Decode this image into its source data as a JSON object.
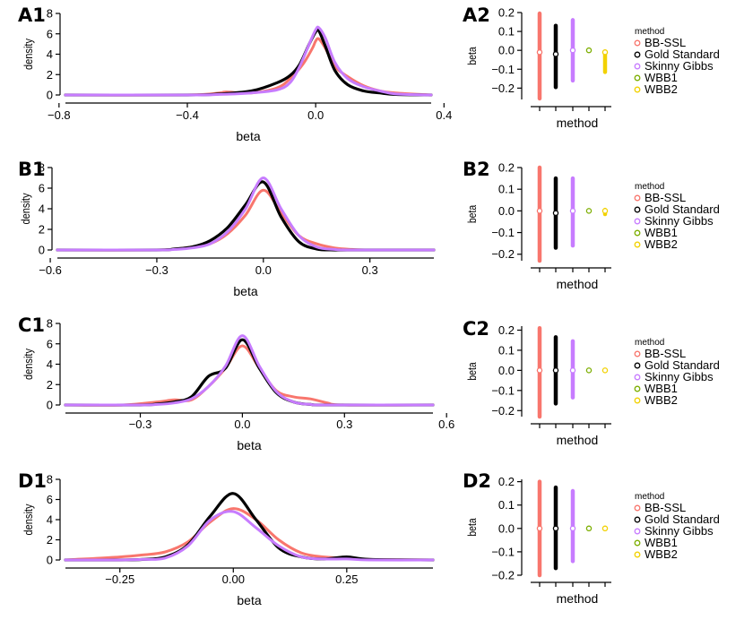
{
  "colors": {
    "BB-SSL": "#F8766D",
    "Gold Standard": "#000000",
    "Skinny Gibbs": "#C77CFF",
    "WBB1": "#7CAE00",
    "WBB2": "#F2D100"
  },
  "chart_data": [
    {
      "panel": "A1",
      "type": "line",
      "xlabel": "beta",
      "ylabel": "density",
      "xlim": [
        -0.78,
        0.36
      ],
      "ylim": [
        0,
        8
      ],
      "xticks": [
        -0.8,
        -0.4,
        0.0,
        0.4
      ],
      "xtick_labels": [
        "−0.8",
        "−0.4",
        "0.0",
        "0.4"
      ],
      "yticks": [
        0,
        2,
        4,
        6,
        8
      ],
      "ytick_labels": [
        "0",
        "2",
        "4",
        "6",
        "8"
      ],
      "series": [
        {
          "name": "BB-SSL",
          "x": [
            -0.78,
            -0.4,
            -0.3,
            -0.28,
            -0.2,
            -0.12,
            -0.08,
            -0.04,
            -0.01,
            0.0,
            0.01,
            0.03,
            0.06,
            0.1,
            0.15,
            0.2,
            0.25,
            0.36
          ],
          "y": [
            0,
            0,
            0.2,
            0.3,
            0.2,
            0.7,
            1.6,
            3.0,
            4.6,
            5.3,
            5.5,
            4.6,
            2.8,
            1.8,
            0.9,
            0.4,
            0.2,
            0
          ]
        },
        {
          "name": "Gold Standard",
          "x": [
            -0.78,
            -0.4,
            -0.3,
            -0.2,
            -0.12,
            -0.08,
            -0.05,
            -0.02,
            0.0,
            0.01,
            0.03,
            0.06,
            0.1,
            0.15,
            0.2,
            0.25,
            0.36
          ],
          "y": [
            0,
            0,
            0.1,
            0.4,
            1.2,
            1.9,
            3.0,
            5.0,
            6.2,
            6.3,
            4.8,
            2.4,
            1.0,
            0.4,
            0.2,
            0.05,
            0
          ]
        },
        {
          "name": "Skinny Gibbs",
          "x": [
            -0.78,
            -0.4,
            -0.3,
            -0.2,
            -0.12,
            -0.08,
            -0.05,
            -0.02,
            0.0,
            0.01,
            0.03,
            0.06,
            0.1,
            0.15,
            0.2,
            0.25,
            0.36
          ],
          "y": [
            0,
            0,
            0.05,
            0.2,
            0.5,
            1.2,
            2.8,
            5.0,
            6.4,
            6.6,
            5.6,
            3.2,
            1.6,
            0.8,
            0.4,
            0.1,
            0
          ]
        }
      ]
    },
    {
      "panel": "B1",
      "type": "line",
      "xlabel": "beta",
      "ylabel": "density",
      "xlim": [
        -0.58,
        0.48
      ],
      "ylim": [
        0,
        8
      ],
      "xticks": [
        -0.6,
        -0.3,
        0.0,
        0.3
      ],
      "xtick_labels": [
        "−0.6",
        "−0.3",
        "0.0",
        "0.3"
      ],
      "yticks": [
        0,
        2,
        4,
        6,
        8
      ],
      "ytick_labels": [
        "0",
        "2",
        "4",
        "6",
        "8"
      ],
      "series": [
        {
          "name": "BB-SSL",
          "x": [
            -0.58,
            -0.3,
            -0.25,
            -0.2,
            -0.15,
            -0.1,
            -0.05,
            0.0,
            0.05,
            0.1,
            0.15,
            0.2,
            0.25,
            0.3,
            0.48
          ],
          "y": [
            0,
            0,
            0.1,
            0.3,
            0.6,
            1.6,
            3.4,
            5.8,
            3.6,
            1.4,
            0.6,
            0.2,
            0.05,
            0,
            0
          ]
        },
        {
          "name": "Gold Standard",
          "x": [
            -0.58,
            -0.3,
            -0.25,
            -0.2,
            -0.15,
            -0.1,
            -0.05,
            0.0,
            0.05,
            0.1,
            0.15,
            0.2,
            0.25,
            0.48
          ],
          "y": [
            0,
            0,
            0.1,
            0.3,
            0.9,
            2.2,
            4.4,
            6.6,
            3.2,
            0.8,
            0.1,
            0,
            0,
            0
          ]
        },
        {
          "name": "Skinny Gibbs",
          "x": [
            -0.58,
            -0.3,
            -0.25,
            -0.2,
            -0.15,
            -0.1,
            -0.05,
            0.0,
            0.05,
            0.1,
            0.15,
            0.2,
            0.25,
            0.48
          ],
          "y": [
            0,
            0,
            0.05,
            0.2,
            0.6,
            1.8,
            4.0,
            7.0,
            4.0,
            1.4,
            0.3,
            0.05,
            0,
            0
          ]
        }
      ]
    },
    {
      "panel": "C1",
      "type": "line",
      "xlabel": "beta",
      "ylabel": "density",
      "xlim": [
        -0.52,
        0.56
      ],
      "ylim": [
        0,
        8
      ],
      "xticks": [
        -0.3,
        0.0,
        0.3,
        0.6
      ],
      "xtick_labels": [
        "−0.3",
        "0.0",
        "0.3",
        "0.6"
      ],
      "yticks": [
        0,
        2,
        4,
        6,
        8
      ],
      "ytick_labels": [
        "0",
        "2",
        "4",
        "6",
        "8"
      ],
      "series": [
        {
          "name": "BB-SSL",
          "x": [
            -0.52,
            -0.35,
            -0.25,
            -0.2,
            -0.15,
            -0.1,
            -0.05,
            0.0,
            0.05,
            0.1,
            0.15,
            0.2,
            0.25,
            0.3,
            0.56
          ],
          "y": [
            0,
            0,
            0.3,
            0.5,
            0.5,
            1.8,
            3.6,
            5.8,
            3.6,
            1.4,
            0.8,
            0.6,
            0.2,
            0,
            0
          ]
        },
        {
          "name": "Gold Standard",
          "x": [
            -0.52,
            -0.3,
            -0.25,
            -0.2,
            -0.15,
            -0.1,
            -0.05,
            0.0,
            0.05,
            0.1,
            0.15,
            0.2,
            0.25,
            0.56
          ],
          "y": [
            0,
            0,
            0.1,
            0.3,
            0.8,
            2.8,
            3.6,
            6.4,
            3.6,
            1.2,
            0.3,
            0.05,
            0,
            0
          ]
        },
        {
          "name": "Skinny Gibbs",
          "x": [
            -0.52,
            -0.3,
            -0.25,
            -0.2,
            -0.15,
            -0.1,
            -0.05,
            0.0,
            0.05,
            0.1,
            0.15,
            0.2,
            0.25,
            0.56
          ],
          "y": [
            0,
            0,
            0.05,
            0.2,
            0.6,
            1.8,
            3.8,
            6.8,
            3.8,
            1.3,
            0.3,
            0.05,
            0,
            0
          ]
        }
      ]
    },
    {
      "panel": "D1",
      "type": "line",
      "xlabel": "beta",
      "ylabel": "density",
      "xlim": [
        -0.37,
        0.44
      ],
      "ylim": [
        0,
        8
      ],
      "xticks": [
        -0.25,
        0.0,
        0.25
      ],
      "xtick_labels": [
        "−0.25",
        "0.00",
        "0.25"
      ],
      "yticks": [
        0,
        2,
        4,
        6,
        8
      ],
      "ytick_labels": [
        "0",
        "2",
        "4",
        "6",
        "8"
      ],
      "series": [
        {
          "name": "BB-SSL",
          "x": [
            -0.37,
            -0.25,
            -0.2,
            -0.15,
            -0.1,
            -0.05,
            0.0,
            0.05,
            0.1,
            0.15,
            0.2,
            0.25,
            0.3,
            0.44
          ],
          "y": [
            0,
            0.3,
            0.5,
            0.8,
            1.8,
            3.8,
            5.1,
            4.0,
            2.0,
            0.7,
            0.3,
            0.2,
            0.05,
            0
          ]
        },
        {
          "name": "Gold Standard",
          "x": [
            -0.37,
            -0.25,
            -0.2,
            -0.15,
            -0.1,
            -0.05,
            0.0,
            0.05,
            0.1,
            0.15,
            0.2,
            0.25,
            0.3,
            0.44
          ],
          "y": [
            0,
            0,
            0.05,
            0.3,
            1.5,
            4.4,
            6.6,
            4.0,
            1.2,
            0.3,
            0.1,
            0.3,
            0.05,
            0
          ]
        },
        {
          "name": "Skinny Gibbs",
          "x": [
            -0.37,
            -0.25,
            -0.2,
            -0.15,
            -0.1,
            -0.05,
            0.0,
            0.05,
            0.1,
            0.15,
            0.2,
            0.25,
            0.3,
            0.44
          ],
          "y": [
            0,
            0,
            0.05,
            0.2,
            1.4,
            4.0,
            4.8,
            3.2,
            1.4,
            0.3,
            0.1,
            0.1,
            0,
            0
          ]
        }
      ]
    },
    {
      "panel": "A2",
      "type": "scatter",
      "xlabel": "method",
      "ylabel": "beta",
      "ylim": [
        -0.26,
        0.2
      ],
      "yticks": [
        0.2,
        0.1,
        0.0,
        -0.1,
        -0.2
      ],
      "ytick_labels": [
        "0.2",
        "0.1",
        "0.0",
        "−0.1",
        "−0.2"
      ],
      "categories": [
        "BB-SSL",
        "Gold Standard",
        "Skinny Gibbs",
        "WBB1",
        "WBB2"
      ],
      "intervals": [
        {
          "name": "BB-SSL",
          "low": -0.255,
          "point": -0.01,
          "high": 0.195
        },
        {
          "name": "Gold Standard",
          "low": -0.195,
          "point": -0.02,
          "high": 0.13
        },
        {
          "name": "Skinny Gibbs",
          "low": -0.16,
          "point": 0.0,
          "high": 0.16
        },
        {
          "name": "WBB1",
          "low": 0.0,
          "point": 0.0,
          "high": 0.0
        },
        {
          "name": "WBB2",
          "low": -0.115,
          "point": -0.01,
          "high": -0.01
        }
      ],
      "legend": {
        "title": "method",
        "position": "right",
        "entries": [
          "BB-SSL",
          "Gold Standard",
          "Skinny Gibbs",
          "WBB1",
          "WBB2"
        ]
      }
    },
    {
      "panel": "B2",
      "type": "scatter",
      "xlabel": "method",
      "ylabel": "beta",
      "ylim": [
        -0.23,
        0.2
      ],
      "yticks": [
        0.2,
        0.1,
        0.0,
        -0.1,
        -0.2
      ],
      "ytick_labels": [
        "0.2",
        "0.1",
        "0.0",
        "−0.1",
        "−0.2"
      ],
      "categories": [
        "BB-SSL",
        "Gold Standard",
        "Skinny Gibbs",
        "WBB1",
        "WBB2"
      ],
      "intervals": [
        {
          "name": "BB-SSL",
          "low": -0.23,
          "point": 0.0,
          "high": 0.2
        },
        {
          "name": "Gold Standard",
          "low": -0.17,
          "point": -0.01,
          "high": 0.15
        },
        {
          "name": "Skinny Gibbs",
          "low": -0.16,
          "point": 0.0,
          "high": 0.15
        },
        {
          "name": "WBB1",
          "low": 0.0,
          "point": 0.0,
          "high": 0.0
        },
        {
          "name": "WBB2",
          "low": -0.015,
          "point": 0.0,
          "high": 0.005
        }
      ],
      "legend": {
        "title": "method",
        "position": "right",
        "entries": [
          "BB-SSL",
          "Gold Standard",
          "Skinny Gibbs",
          "WBB1",
          "WBB2"
        ]
      }
    },
    {
      "panel": "C2",
      "type": "scatter",
      "xlabel": "method",
      "ylabel": "beta",
      "ylim": [
        -0.23,
        0.22
      ],
      "yticks": [
        0.2,
        0.1,
        0.0,
        -0.1,
        -0.2
      ],
      "ytick_labels": [
        "0.2",
        "0.1",
        "0.0",
        "−0.1",
        "−0.2"
      ],
      "categories": [
        "BB-SSL",
        "Gold Standard",
        "Skinny Gibbs",
        "WBB1",
        "WBB2"
      ],
      "intervals": [
        {
          "name": "BB-SSL",
          "low": -0.23,
          "point": 0.0,
          "high": 0.21
        },
        {
          "name": "Gold Standard",
          "low": -0.165,
          "point": 0.0,
          "high": 0.165
        },
        {
          "name": "Skinny Gibbs",
          "low": -0.135,
          "point": 0.0,
          "high": 0.145
        },
        {
          "name": "WBB1",
          "low": 0.0,
          "point": 0.0,
          "high": 0.0
        },
        {
          "name": "WBB2",
          "low": 0.0,
          "point": 0.0,
          "high": 0.0
        }
      ],
      "legend": {
        "title": "method",
        "position": "right",
        "entries": [
          "BB-SSL",
          "Gold Standard",
          "Skinny Gibbs",
          "WBB1",
          "WBB2"
        ]
      }
    },
    {
      "panel": "D2",
      "type": "scatter",
      "xlabel": "method",
      "ylabel": "beta",
      "ylim": [
        -0.2,
        0.21
      ],
      "yticks": [
        0.2,
        0.1,
        0.0,
        -0.1,
        -0.2
      ],
      "ytick_labels": [
        "0.2",
        "0.1",
        "0.0",
        "−0.1",
        "−0.2"
      ],
      "categories": [
        "BB-SSL",
        "Gold Standard",
        "Skinny Gibbs",
        "WBB1",
        "WBB2"
      ],
      "intervals": [
        {
          "name": "BB-SSL",
          "low": -0.2,
          "point": 0.0,
          "high": 0.2
        },
        {
          "name": "Gold Standard",
          "low": -0.17,
          "point": 0.0,
          "high": 0.175
        },
        {
          "name": "Skinny Gibbs",
          "low": -0.14,
          "point": 0.0,
          "high": 0.16
        },
        {
          "name": "WBB1",
          "low": 0.0,
          "point": 0.0,
          "high": 0.0
        },
        {
          "name": "WBB2",
          "low": 0.0,
          "point": 0.0,
          "high": 0.0
        }
      ],
      "legend": {
        "title": "method",
        "position": "right",
        "entries": [
          "BB-SSL",
          "Gold Standard",
          "Skinny Gibbs",
          "WBB1",
          "WBB2"
        ]
      }
    }
  ]
}
